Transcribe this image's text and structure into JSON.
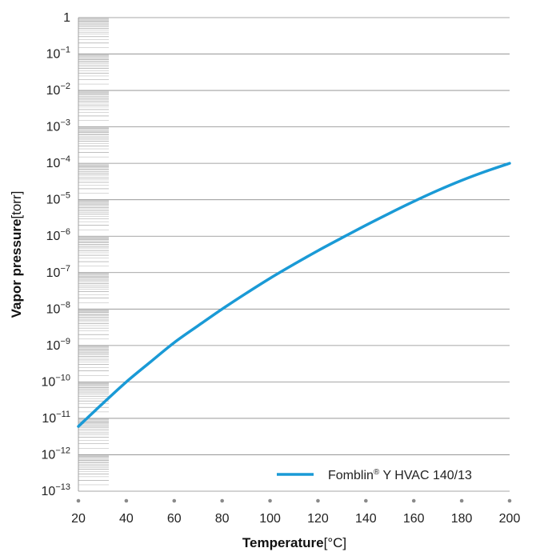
{
  "chart_data": {
    "type": "line",
    "title": "",
    "xlabel": {
      "bold": "Temperature",
      "unit": "[°C]"
    },
    "ylabel": {
      "bold": "Vapor pressure",
      "unit": "[torr]"
    },
    "x_ticks": [
      "20",
      "40",
      "60",
      "80",
      "100",
      "120",
      "140",
      "160",
      "180",
      "200"
    ],
    "xlim": [
      20,
      200
    ],
    "y_scale": "log",
    "ylim": [
      1e-13,
      1
    ],
    "y_ticks": [
      {
        "base": "1",
        "exp": ""
      },
      {
        "base": "10",
        "exp": "−1"
      },
      {
        "base": "10",
        "exp": "−2"
      },
      {
        "base": "10",
        "exp": "−3"
      },
      {
        "base": "10",
        "exp": "−4"
      },
      {
        "base": "10",
        "exp": "−5"
      },
      {
        "base": "10",
        "exp": "−6"
      },
      {
        "base": "10",
        "exp": "−7"
      },
      {
        "base": "10",
        "exp": "−8"
      },
      {
        "base": "10",
        "exp": "−9"
      },
      {
        "base": "10",
        "exp": "−10"
      },
      {
        "base": "10",
        "exp": "−11"
      },
      {
        "base": "10",
        "exp": "−12"
      },
      {
        "base": "10",
        "exp": "−13"
      }
    ],
    "grid": "horizontal",
    "legend_position": "bottom-right",
    "series": [
      {
        "name": "Fomblin® Y HVAC 140/13",
        "name_parts": {
          "brand": "Fomblin",
          "reg": "®",
          "rest": " Y HVAC 140/13"
        },
        "color": "#1a9ad6",
        "x": [
          20,
          30,
          40,
          50,
          60,
          70,
          80,
          90,
          100,
          110,
          120,
          130,
          140,
          150,
          160,
          170,
          180,
          190,
          200
        ],
        "y": [
          6e-12,
          2.5e-11,
          1e-10,
          3.5e-10,
          1.2e-09,
          3.5e-09,
          1e-08,
          2.7e-08,
          7e-08,
          1.7e-07,
          4e-07,
          9e-07,
          2e-06,
          4.3e-06,
          9e-06,
          1.8e-05,
          3.4e-05,
          6e-05,
          0.0001
        ]
      }
    ]
  }
}
